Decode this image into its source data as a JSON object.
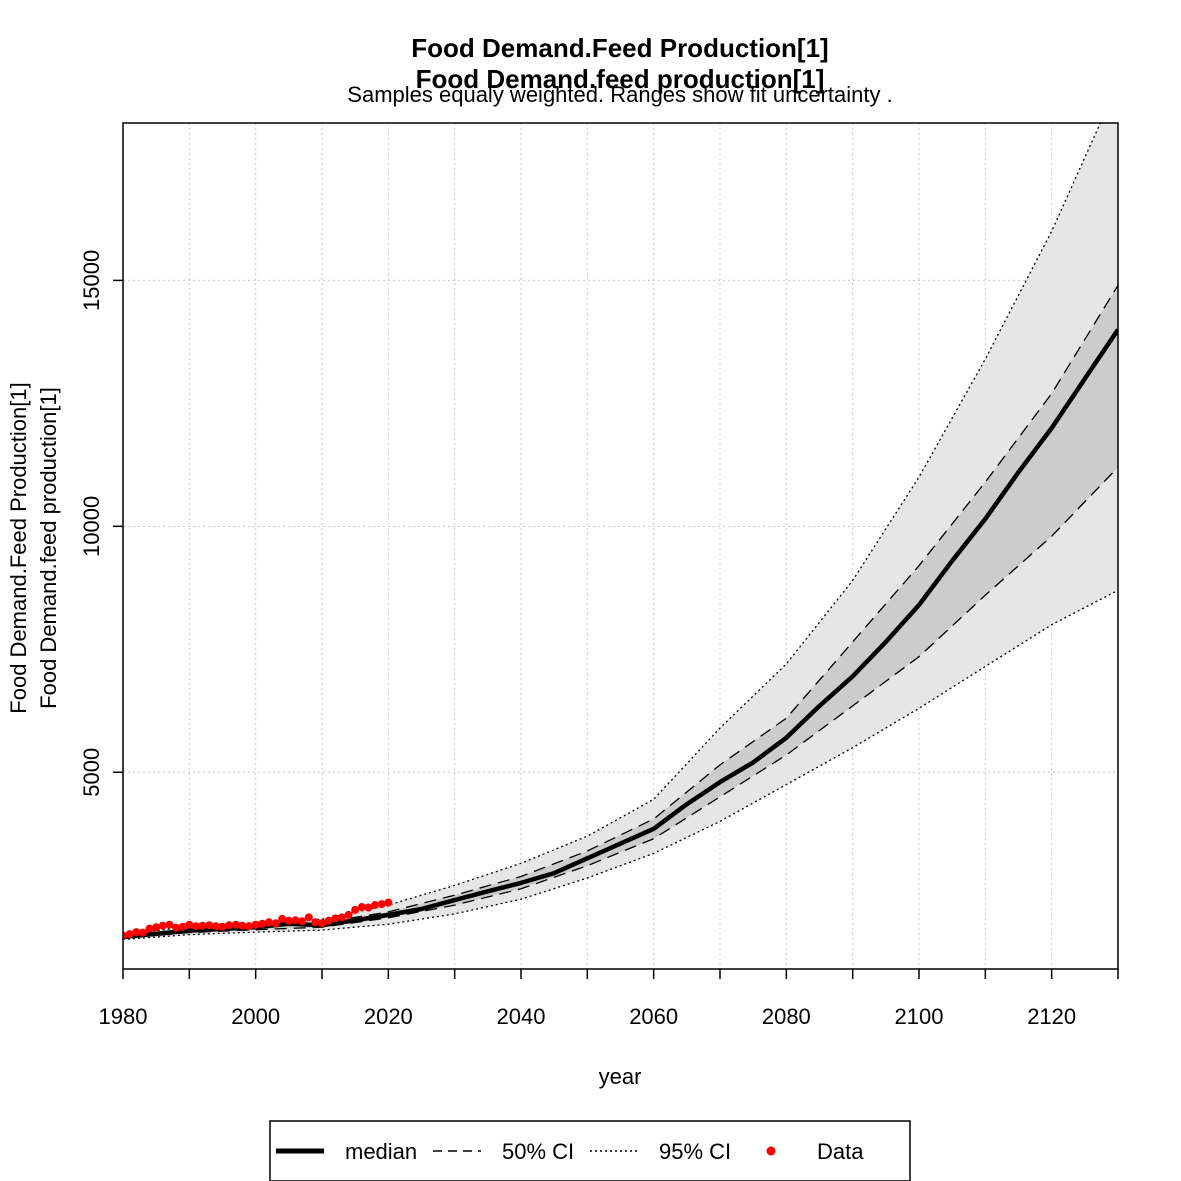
{
  "chart_data": {
    "type": "line",
    "title": "Food Demand.Feed Production[1]",
    "title2": "Food Demand.feed production[1]",
    "subtitle": "Samples equaly weighted. Ranges show  fit uncertainty .",
    "xlabel": "year",
    "ylabel": "Food Demand.Feed Production[1]",
    "ylabel2": "Food Demand.feed production[1]",
    "xlim": [
      1980,
      2130
    ],
    "ylim": [
      1000,
      18200
    ],
    "x_ticks": [
      "1980",
      "2000",
      "2020",
      "2040",
      "2060",
      "2080",
      "2100",
      "2120"
    ],
    "y_ticks": [
      "5000",
      "10000",
      "15000"
    ],
    "grid": true,
    "legend_position": "bottom",
    "legend": [
      {
        "label": "median",
        "style": "solid-thick"
      },
      {
        "label": "50% CI",
        "style": "dashed"
      },
      {
        "label": "95% CI",
        "style": "dotted"
      },
      {
        "label": "Data",
        "style": "point"
      }
    ],
    "colors": {
      "median": "#000000",
      "ci50_fill": "#cccccc",
      "ci95_fill": "#e6e6e6",
      "data": "#ff0000",
      "grid": "#c8c8c8"
    },
    "series": [
      {
        "name": "median",
        "x": [
          1980,
          1990,
          2000,
          2005,
          2010,
          2015,
          2020,
          2025,
          2030,
          2035,
          2040,
          2045,
          2050,
          2055,
          2060,
          2065,
          2070,
          2075,
          2080,
          2085,
          2090,
          2095,
          2100,
          2105,
          2110,
          2115,
          2120,
          2125,
          2130
        ],
        "y": [
          1650,
          1780,
          1850,
          1920,
          1890,
          1990,
          2100,
          2220,
          2400,
          2580,
          2750,
          2950,
          3250,
          3550,
          3850,
          4350,
          4800,
          5200,
          5700,
          6350,
          6950,
          7650,
          8400,
          9300,
          10150,
          11100,
          12000,
          13000,
          14000
        ]
      },
      {
        "name": "50% CI lower",
        "x": [
          1980,
          1990,
          2000,
          2010,
          2020,
          2030,
          2040,
          2050,
          2060,
          2070,
          2080,
          2090,
          2100,
          2110,
          2120,
          2130
        ],
        "y": [
          1630,
          1740,
          1800,
          1850,
          2040,
          2300,
          2630,
          3100,
          3650,
          4500,
          5350,
          6350,
          7350,
          8600,
          9800,
          11200
        ]
      },
      {
        "name": "50% CI upper",
        "x": [
          1980,
          1990,
          2000,
          2010,
          2020,
          2030,
          2040,
          2050,
          2060,
          2070,
          2080,
          2090,
          2100,
          2110,
          2120,
          2130
        ],
        "y": [
          1670,
          1810,
          1890,
          1940,
          2160,
          2500,
          2880,
          3400,
          4050,
          5150,
          6100,
          7650,
          9200,
          10900,
          12700,
          14900
        ]
      },
      {
        "name": "95% CI lower",
        "x": [
          1980,
          1990,
          2000,
          2010,
          2020,
          2030,
          2040,
          2050,
          2060,
          2070,
          2080,
          2090,
          2100,
          2110,
          2120,
          2130
        ],
        "y": [
          1600,
          1700,
          1750,
          1790,
          1910,
          2120,
          2420,
          2850,
          3350,
          4000,
          4750,
          5500,
          6300,
          7150,
          8000,
          8700
        ]
      },
      {
        "name": "95% CI upper",
        "x": [
          1980,
          1990,
          2000,
          2010,
          2020,
          2030,
          2040,
          2050,
          2060,
          2070,
          2080,
          2090,
          2100,
          2110,
          2120,
          2130
        ],
        "y": [
          1700,
          1860,
          1950,
          2010,
          2300,
          2700,
          3150,
          3700,
          4450,
          5900,
          7200,
          8900,
          11000,
          13400,
          16000,
          19000
        ]
      },
      {
        "name": "Data",
        "x": [
          1980,
          1981,
          1982,
          1983,
          1984,
          1985,
          1986,
          1987,
          1988,
          1989,
          1990,
          1991,
          1992,
          1993,
          1994,
          1995,
          1996,
          1997,
          1998,
          1999,
          2000,
          2001,
          2002,
          2003,
          2004,
          2005,
          2006,
          2007,
          2008,
          2009,
          2010,
          2011,
          2012,
          2013,
          2014,
          2015,
          2016,
          2017,
          2018,
          2019,
          2020
        ],
        "y": [
          1680,
          1710,
          1750,
          1740,
          1820,
          1850,
          1880,
          1900,
          1840,
          1860,
          1900,
          1870,
          1880,
          1890,
          1870,
          1860,
          1890,
          1900,
          1880,
          1870,
          1900,
          1920,
          1950,
          1930,
          2020,
          1980,
          1990,
          1970,
          2050,
          1950,
          1930,
          1980,
          2030,
          2050,
          2100,
          2200,
          2260,
          2250,
          2300,
          2320,
          2350
        ]
      }
    ]
  }
}
